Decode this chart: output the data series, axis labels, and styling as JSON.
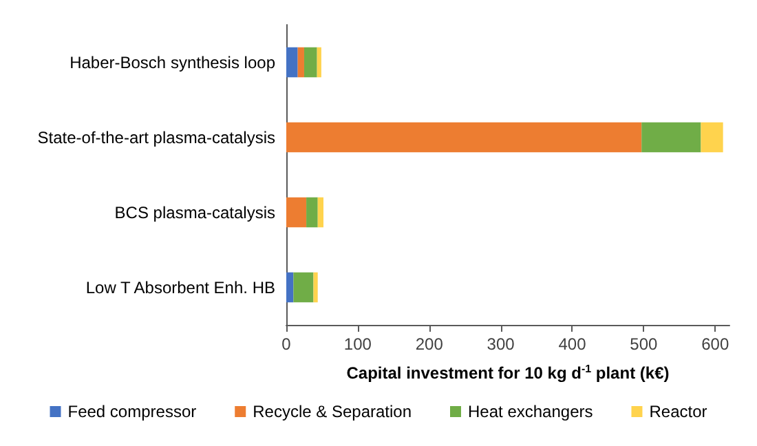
{
  "chart_data": {
    "type": "bar",
    "orientation": "horizontal",
    "stacked": true,
    "categories": [
      "Haber-Bosch synthesis loop",
      "State-of-the-art plasma-catalysis",
      "BCS plasma-catalysis",
      "Low T Absorbent Enh. HB"
    ],
    "series": [
      {
        "name": "Feed compressor",
        "color": "#4472c4",
        "values": [
          16,
          0,
          0,
          10
        ]
      },
      {
        "name": "Recycle & Separation",
        "color": "#ed7d31",
        "values": [
          9,
          497,
          28,
          0
        ]
      },
      {
        "name": "Heat exchangers",
        "color": "#70ad47",
        "values": [
          18,
          83,
          16,
          28
        ]
      },
      {
        "name": "Reactor",
        "color": "#ffd34d",
        "values": [
          6,
          31,
          8,
          6
        ]
      }
    ],
    "xlabel": "Capital investment for 10 kg d$^{-1}$ plant (k€)",
    "xlim": [
      0,
      620
    ],
    "xticks": [
      0,
      100,
      200,
      300,
      400,
      500,
      600
    ],
    "grid": false,
    "legend": "bottom"
  }
}
